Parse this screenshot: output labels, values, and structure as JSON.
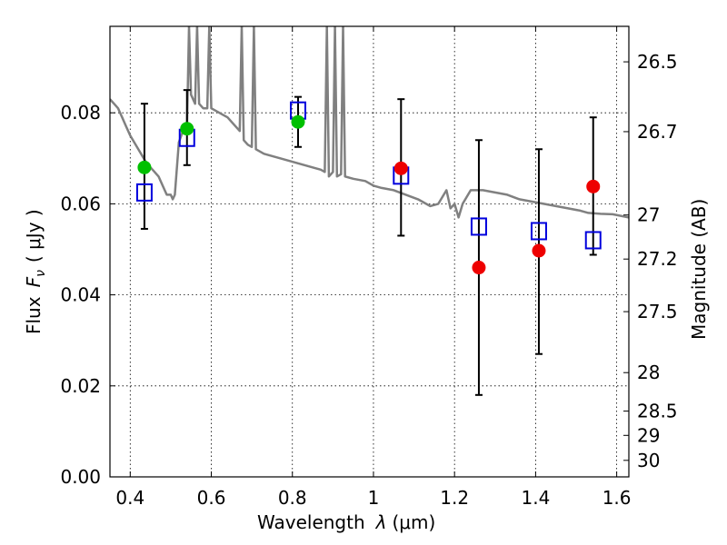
{
  "chart_data": {
    "type": "scatter",
    "xlabel_text": "Wavelength",
    "xlabel_symbol": "λ",
    "xlabel_unit": "(μm)",
    "ylabel_text": "Flux",
    "ylabel_symbol": "F",
    "ylabel_subscript": "ν",
    "ylabel_unit": "( μJy )",
    "y2label": "Magnitude (AB)",
    "xlim": [
      0.35,
      1.63
    ],
    "ylim": [
      0.0,
      0.099
    ],
    "grid": true,
    "x_ticks": [
      {
        "value": 0.4,
        "label": "0.4"
      },
      {
        "value": 0.6,
        "label": "0.6"
      },
      {
        "value": 0.8,
        "label": "0.8"
      },
      {
        "value": 1.0,
        "label": "1"
      },
      {
        "value": 1.2,
        "label": "1.2"
      },
      {
        "value": 1.4,
        "label": "1.4"
      },
      {
        "value": 1.6,
        "label": "1.6"
      }
    ],
    "y_ticks": [
      {
        "value": 0.0,
        "label": "0.00"
      },
      {
        "value": 0.02,
        "label": "0.02"
      },
      {
        "value": 0.04,
        "label": "0.04"
      },
      {
        "value": 0.06,
        "label": "0.06"
      },
      {
        "value": 0.08,
        "label": "0.08"
      }
    ],
    "y2_ticks": [
      {
        "value": 26.5,
        "label": "26.5"
      },
      {
        "value": 26.7,
        "label": "26.7"
      },
      {
        "value": 27.0,
        "label": "27"
      },
      {
        "value": 27.2,
        "label": "27.2"
      },
      {
        "value": 27.5,
        "label": "27.5"
      },
      {
        "value": 28.0,
        "label": "28"
      },
      {
        "value": 28.5,
        "label": "28.5"
      },
      {
        "value": 29.0,
        "label": "29"
      },
      {
        "value": 30.0,
        "label": "30"
      }
    ],
    "colors": {
      "model": "#808080",
      "green": "#00c000",
      "red": "#ee0000",
      "box": "#0000dd",
      "error": "#000000"
    },
    "model_spectrum": [
      [
        0.35,
        0.083
      ],
      [
        0.36,
        0.082
      ],
      [
        0.37,
        0.081
      ],
      [
        0.38,
        0.079
      ],
      [
        0.39,
        0.077
      ],
      [
        0.4,
        0.075
      ],
      [
        0.42,
        0.072
      ],
      [
        0.44,
        0.069
      ],
      [
        0.46,
        0.067
      ],
      [
        0.47,
        0.066
      ],
      [
        0.48,
        0.064
      ],
      [
        0.49,
        0.062
      ],
      [
        0.5,
        0.062
      ],
      [
        0.505,
        0.061
      ],
      [
        0.51,
        0.062
      ],
      [
        0.52,
        0.0735
      ],
      [
        0.53,
        0.076
      ],
      [
        0.54,
        0.077
      ],
      [
        0.545,
        0.099
      ],
      [
        0.55,
        0.084
      ],
      [
        0.56,
        0.082
      ],
      [
        0.565,
        0.099
      ],
      [
        0.57,
        0.082
      ],
      [
        0.58,
        0.081
      ],
      [
        0.59,
        0.081
      ],
      [
        0.595,
        0.099
      ],
      [
        0.6,
        0.081
      ],
      [
        0.62,
        0.08
      ],
      [
        0.64,
        0.079
      ],
      [
        0.66,
        0.077
      ],
      [
        0.67,
        0.076
      ],
      [
        0.675,
        0.099
      ],
      [
        0.68,
        0.074
      ],
      [
        0.69,
        0.073
      ],
      [
        0.7,
        0.0725
      ],
      [
        0.705,
        0.099
      ],
      [
        0.71,
        0.072
      ],
      [
        0.73,
        0.071
      ],
      [
        0.75,
        0.0705
      ],
      [
        0.77,
        0.07
      ],
      [
        0.79,
        0.0695
      ],
      [
        0.81,
        0.069
      ],
      [
        0.83,
        0.0685
      ],
      [
        0.85,
        0.068
      ],
      [
        0.87,
        0.0675
      ],
      [
        0.88,
        0.067
      ],
      [
        0.885,
        0.099
      ],
      [
        0.89,
        0.066
      ],
      [
        0.9,
        0.067
      ],
      [
        0.905,
        0.099
      ],
      [
        0.91,
        0.066
      ],
      [
        0.92,
        0.0665
      ],
      [
        0.925,
        0.099
      ],
      [
        0.93,
        0.066
      ],
      [
        0.95,
        0.0655
      ],
      [
        0.98,
        0.065
      ],
      [
        1.0,
        0.064
      ],
      [
        1.02,
        0.0635
      ],
      [
        1.05,
        0.063
      ],
      [
        1.08,
        0.062
      ],
      [
        1.11,
        0.061
      ],
      [
        1.14,
        0.0595
      ],
      [
        1.16,
        0.06
      ],
      [
        1.18,
        0.063
      ],
      [
        1.19,
        0.059
      ],
      [
        1.2,
        0.06
      ],
      [
        1.21,
        0.057
      ],
      [
        1.22,
        0.06
      ],
      [
        1.24,
        0.063
      ],
      [
        1.27,
        0.063
      ],
      [
        1.3,
        0.0625
      ],
      [
        1.33,
        0.062
      ],
      [
        1.36,
        0.061
      ],
      [
        1.39,
        0.0605
      ],
      [
        1.42,
        0.06
      ],
      [
        1.45,
        0.0595
      ],
      [
        1.48,
        0.059
      ],
      [
        1.51,
        0.0585
      ],
      [
        1.53,
        0.058
      ],
      [
        1.56,
        0.0578
      ],
      [
        1.59,
        0.0577
      ],
      [
        1.63,
        0.057
      ]
    ],
    "model_boxes": [
      {
        "x": 0.435,
        "y": 0.0625
      },
      {
        "x": 0.54,
        "y": 0.0745
      },
      {
        "x": 0.814,
        "y": 0.0805
      },
      {
        "x": 1.068,
        "y": 0.0662
      },
      {
        "x": 1.26,
        "y": 0.055
      },
      {
        "x": 1.408,
        "y": 0.054
      },
      {
        "x": 1.542,
        "y": 0.052
      }
    ],
    "observations": [
      {
        "x": 0.435,
        "y": 0.068,
        "err_low": 0.0545,
        "err_high": 0.082,
        "color": "green"
      },
      {
        "x": 0.54,
        "y": 0.0765,
        "err_low": 0.0685,
        "err_high": 0.085,
        "color": "green"
      },
      {
        "x": 0.814,
        "y": 0.078,
        "err_low": 0.0725,
        "err_high": 0.0835,
        "color": "green"
      },
      {
        "x": 1.068,
        "y": 0.0678,
        "err_low": 0.053,
        "err_high": 0.083,
        "color": "red"
      },
      {
        "x": 1.26,
        "y": 0.046,
        "err_low": 0.018,
        "err_high": 0.074,
        "color": "red"
      },
      {
        "x": 1.408,
        "y": 0.0497,
        "err_low": 0.027,
        "err_high": 0.072,
        "color": "red"
      },
      {
        "x": 1.542,
        "y": 0.0638,
        "err_low": 0.0488,
        "err_high": 0.079,
        "color": "red"
      }
    ]
  }
}
